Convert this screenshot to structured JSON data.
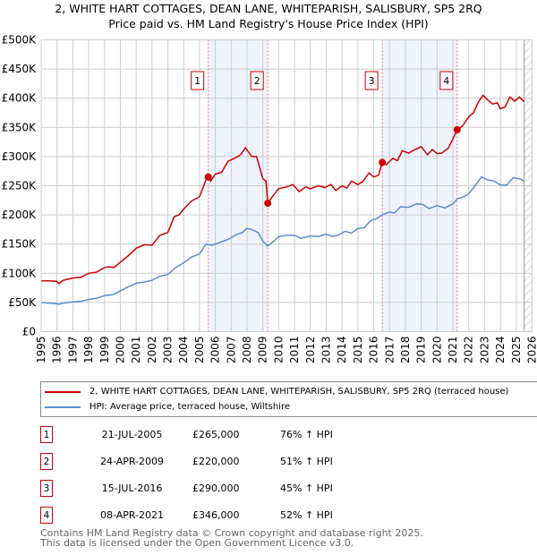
{
  "header": {
    "title": "2, WHITE HART COTTAGES, DEAN LANE, WHITEPARISH, SALISBURY, SP5 2RQ",
    "subtitle": "Price paid vs. HM Land Registry's House Price Index (HPI)"
  },
  "chart_data": {
    "type": "line",
    "xlim": [
      1995,
      2026
    ],
    "ylim": [
      0,
      500000
    ],
    "y_ticks": [
      {
        "v": 0,
        "label": "£0"
      },
      {
        "v": 50000,
        "label": "£50K"
      },
      {
        "v": 100000,
        "label": "£100K"
      },
      {
        "v": 150000,
        "label": "£150K"
      },
      {
        "v": 200000,
        "label": "£200K"
      },
      {
        "v": 250000,
        "label": "£250K"
      },
      {
        "v": 300000,
        "label": "£300K"
      },
      {
        "v": 350000,
        "label": "£350K"
      },
      {
        "v": 400000,
        "label": "£400K"
      },
      {
        "v": 450000,
        "label": "£450K"
      },
      {
        "v": 500000,
        "label": "£500K"
      }
    ],
    "x_ticks": [
      "1995",
      "1996",
      "1997",
      "1998",
      "1999",
      "2000",
      "2001",
      "2002",
      "2003",
      "2004",
      "2005",
      "2006",
      "2007",
      "2008",
      "2009",
      "2010",
      "2011",
      "2012",
      "2013",
      "2014",
      "2015",
      "2016",
      "2017",
      "2018",
      "2019",
      "2020",
      "2021",
      "2022",
      "2023",
      "2024",
      "2025",
      "2026"
    ],
    "grid": true,
    "shaded_ranges": [
      [
        2005.55,
        2009.31
      ],
      [
        2016.54,
        2021.27
      ]
    ],
    "forecast_hatch_from": 2025.5,
    "series": [
      {
        "name": "2, WHITE HART COTTAGES, DEAN LANE, WHITEPARISH, SALISBURY, SP5 2RQ (terraced house)",
        "color": "#cc0000",
        "x": [
          1995,
          1995.5,
          1996,
          1996.1,
          1996.4,
          1997,
          1997.5,
          1998,
          1998.5,
          1999,
          1999.3,
          1999.6,
          2000,
          2000.5,
          2001,
          2001.5,
          2002,
          2002.5,
          2003,
          2003.4,
          2003.7,
          2004,
          2004.5,
          2005,
          2005.3,
          2005.5,
          2005.7,
          2006,
          2006.4,
          2006.8,
          2007.2,
          2007.6,
          2007.9,
          2008.3,
          2008.6,
          2009,
          2009.2,
          2009.31,
          2009.7,
          2010,
          2010.5,
          2010.9,
          2011.3,
          2011.7,
          2012,
          2012.5,
          2012.9,
          2013.3,
          2013.6,
          2014,
          2014.3,
          2014.6,
          2015,
          2015.3,
          2015.7,
          2016,
          2016.3,
          2016.54,
          2016.8,
          2017.2,
          2017.5,
          2017.8,
          2018.2,
          2018.6,
          2019,
          2019.4,
          2019.7,
          2020,
          2020.3,
          2020.7,
          2021,
          2021.27,
          2021.6,
          2022,
          2022.3,
          2022.6,
          2022.9,
          2023.2,
          2023.5,
          2023.8,
          2024,
          2024.3,
          2024.6,
          2024.9,
          2025.2,
          2025.5
        ],
        "y": [
          87000,
          87000,
          86000,
          82000,
          88000,
          92000,
          93000,
          100000,
          102000,
          110000,
          111000,
          110000,
          119000,
          130000,
          143000,
          149000,
          148000,
          165000,
          170000,
          197000,
          200000,
          210000,
          224000,
          231000,
          252000,
          268000,
          258000,
          270000,
          273000,
          292000,
          297000,
          303000,
          315000,
          300000,
          300000,
          262000,
          258000,
          220000,
          235000,
          245000,
          248000,
          252000,
          240000,
          248000,
          245000,
          250000,
          247000,
          252000,
          242000,
          250000,
          246000,
          258000,
          252000,
          257000,
          272000,
          265000,
          268000,
          290000,
          286000,
          297000,
          293000,
          310000,
          306000,
          312000,
          317000,
          303000,
          312000,
          305000,
          306000,
          314000,
          330000,
          346000,
          352000,
          368000,
          375000,
          393000,
          405000,
          397000,
          390000,
          392000,
          382000,
          385000,
          402000,
          395000,
          402000,
          394000
        ]
      },
      {
        "name": "HPI: Average price, terraced house, Wiltshire",
        "color": "#5b8bd0",
        "x": [
          1995,
          1995.5,
          1996,
          1996.1,
          1996.4,
          1997,
          1997.5,
          1998,
          1998.5,
          1999,
          1999.5,
          2000,
          2000.5,
          2001,
          2001.5,
          2002,
          2002.5,
          2003,
          2003.5,
          2004,
          2004.5,
          2005,
          2005.4,
          2005.8,
          2006.3,
          2006.8,
          2007.3,
          2007.7,
          2008,
          2008.3,
          2008.7,
          2009,
          2009.3,
          2009.7,
          2010,
          2010.5,
          2011,
          2011.4,
          2012,
          2012.5,
          2013,
          2013.4,
          2013.8,
          2014.2,
          2014.6,
          2015,
          2015.4,
          2015.8,
          2016.2,
          2016.54,
          2017,
          2017.3,
          2017.7,
          2018.2,
          2018.7,
          2019.1,
          2019.5,
          2020,
          2020.5,
          2021,
          2021.3,
          2021.6,
          2022,
          2022.4,
          2022.8,
          2023.2,
          2023.6,
          2024,
          2024.4,
          2024.8,
          2025.2,
          2025.5
        ],
        "y": [
          50000,
          49000,
          48000,
          47000,
          49000,
          51000,
          52000,
          55000,
          57000,
          62000,
          63000,
          70000,
          77000,
          83000,
          85000,
          88000,
          95000,
          98000,
          110000,
          118000,
          128000,
          133000,
          150000,
          148000,
          153000,
          158000,
          166000,
          170000,
          177000,
          175000,
          170000,
          155000,
          147000,
          155000,
          163000,
          165000,
          165000,
          160000,
          164000,
          163000,
          167000,
          163000,
          166000,
          172000,
          169000,
          177000,
          178000,
          190000,
          194000,
          200000,
          205000,
          203000,
          214000,
          213000,
          219000,
          218000,
          211000,
          216000,
          212000,
          219000,
          228000,
          230000,
          236000,
          250000,
          265000,
          260000,
          258000,
          251000,
          251000,
          264000,
          262000,
          258000
        ]
      }
    ],
    "sales": [
      {
        "label": "1",
        "x": 2005.55,
        "y": 265000
      },
      {
        "label": "2",
        "x": 2009.31,
        "y": 220000
      },
      {
        "label": "3",
        "x": 2016.54,
        "y": 290000
      },
      {
        "label": "4",
        "x": 2021.27,
        "y": 346000
      }
    ]
  },
  "legend": {
    "items": [
      {
        "label": "2, WHITE HART COTTAGES, DEAN LANE, WHITEPARISH, SALISBURY, SP5 2RQ (terraced house)",
        "color": "#cc0000"
      },
      {
        "label": "HPI: Average price, terraced house, Wiltshire",
        "color": "#5b8bd0"
      }
    ]
  },
  "transactions": [
    {
      "num": "1",
      "date": "21-JUL-2005",
      "price": "£265,000",
      "hpi": "76% ↑ HPI"
    },
    {
      "num": "2",
      "date": "24-APR-2009",
      "price": "£220,000",
      "hpi": "51% ↑ HPI"
    },
    {
      "num": "3",
      "date": "15-JUL-2016",
      "price": "£290,000",
      "hpi": "45% ↑ HPI"
    },
    {
      "num": "4",
      "date": "08-APR-2021",
      "price": "£346,000",
      "hpi": "52% ↑ HPI"
    }
  ],
  "footer": {
    "line1": "Contains HM Land Registry data © Crown copyright and database right 2025.",
    "line2": "This data is licensed under the Open Government Licence v3.0."
  }
}
